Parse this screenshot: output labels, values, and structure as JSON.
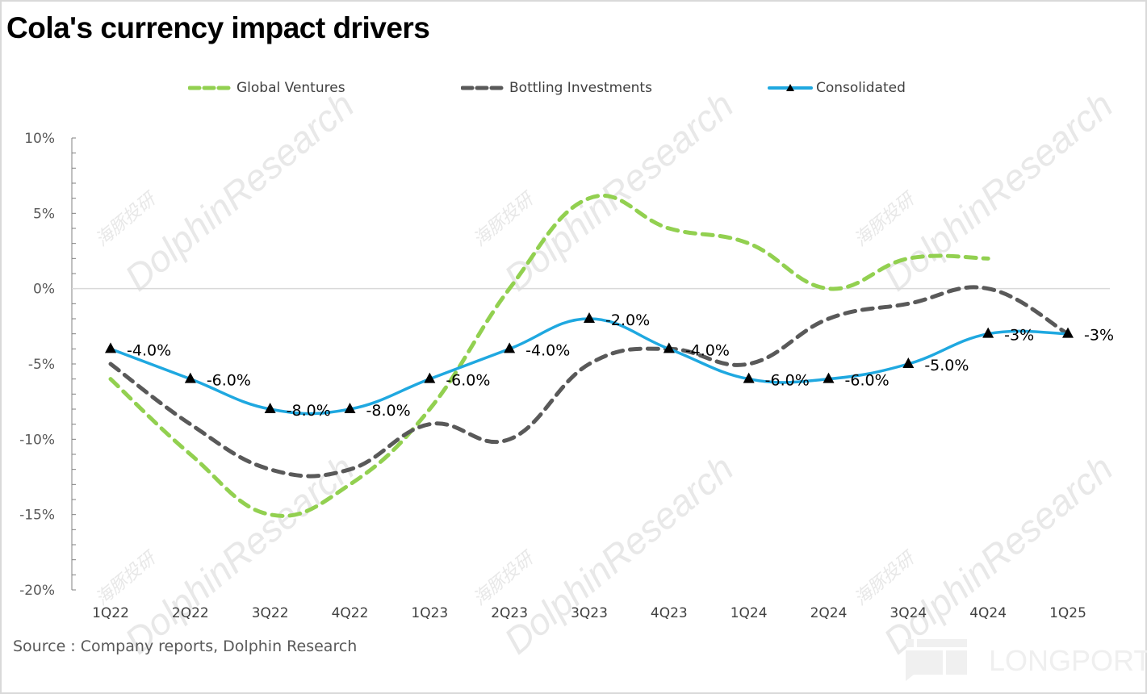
{
  "page": {
    "title": "Cola's currency impact drivers",
    "source": "Source : Company reports, Dolphin Research",
    "watermark_text": "DolphinResearch",
    "watermark_cn": "海豚投研",
    "watermark_brand": "LONGPORT"
  },
  "chart_data": {
    "type": "line",
    "title": "Cola's currency impact drivers",
    "xlabel": "",
    "ylabel": "",
    "ylim": [
      -20,
      10
    ],
    "y_ticks": [
      "10%",
      "5%",
      "0%",
      "-5%",
      "-10%",
      "-15%",
      "-20%"
    ],
    "y_tick_values": [
      10,
      5,
      0,
      -5,
      -10,
      -15,
      -20
    ],
    "grid": false,
    "legend_position": "top",
    "categories": [
      "1Q22",
      "2Q22",
      "3Q22",
      "4Q22",
      "1Q23",
      "2Q23",
      "3Q23",
      "4Q23",
      "1Q24",
      "2Q24",
      "3Q24",
      "4Q24",
      "1Q25"
    ],
    "series": [
      {
        "name": "Global Ventures",
        "color": "#92d050",
        "style": "dashed",
        "marker": "none",
        "values": [
          -6,
          -11,
          -15,
          -13,
          -8,
          0,
          6,
          4,
          3,
          0,
          2,
          2,
          null
        ]
      },
      {
        "name": "Bottling Investments",
        "color": "#595959",
        "style": "dashed",
        "marker": "none",
        "values": [
          -5,
          -9,
          -12,
          -12,
          -9,
          -10,
          -5,
          -4,
          -5,
          -2,
          -1,
          0,
          -3
        ]
      },
      {
        "name": "Consolidated",
        "color": "#1fa8e0",
        "style": "solid",
        "marker": "triangle",
        "values": [
          -4,
          -6,
          -8,
          -8,
          -6,
          -4,
          -2,
          -4,
          -6,
          -6,
          -5,
          -3,
          -3
        ],
        "data_labels": [
          "-4.0%",
          "-6.0%",
          "-8.0%",
          "-8.0%",
          "-6.0%",
          "-4.0%",
          "-2.0%",
          "-4.0%",
          "-6.0%",
          "-6.0%",
          "-5.0%",
          "-3%",
          "-3%"
        ]
      }
    ]
  }
}
